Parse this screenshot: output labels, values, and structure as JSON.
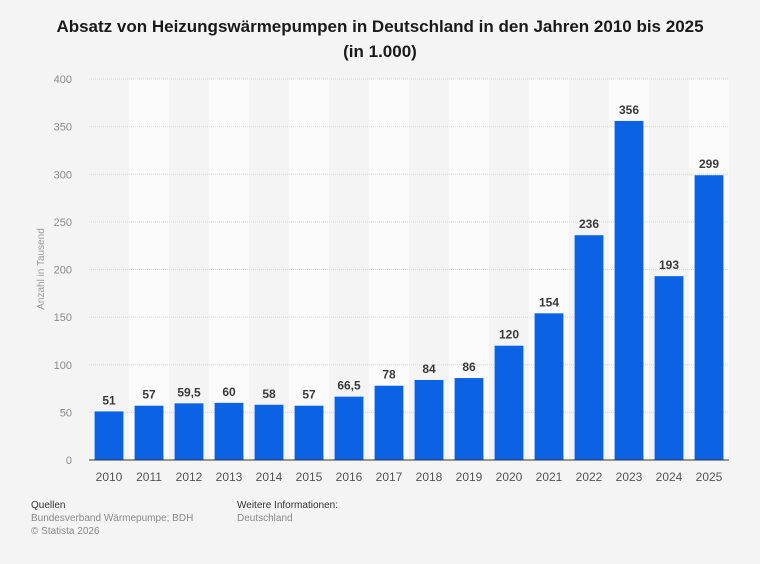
{
  "chart_data": {
    "type": "bar",
    "title": "Absatz von Heizungswärmepumpen in Deutschland in den Jahren 2010 bis 2025",
    "subtitle": "(in 1.000)",
    "xlabel": "",
    "ylabel": "Anzahl in Tausend",
    "ylim": [
      0,
      400
    ],
    "yticks": [
      0,
      50,
      100,
      150,
      200,
      250,
      300,
      350,
      400
    ],
    "grid": true,
    "categories": [
      "2010",
      "2011",
      "2012",
      "2013",
      "2014",
      "2015",
      "2016",
      "2017",
      "2018",
      "2019",
      "2020",
      "2021",
      "2022",
      "2023",
      "2024",
      "2025"
    ],
    "values": [
      51,
      57,
      59.5,
      60,
      58,
      57,
      66.5,
      78,
      84,
      86,
      120,
      154,
      236,
      356,
      193,
      299
    ],
    "value_labels": [
      "51",
      "57",
      "59,5",
      "60",
      "58",
      "57",
      "66,5",
      "78",
      "84",
      "86",
      "120",
      "154",
      "236",
      "356",
      "193",
      "299"
    ],
    "bar_color": "#0c62e4"
  },
  "footer": {
    "sources_heading": "Quellen",
    "sources": "Bundesverband Wärmepumpe; BDH",
    "copyright": "© Statista 2026",
    "info_heading": "Weitere Informationen:",
    "info": "Deutschland"
  }
}
